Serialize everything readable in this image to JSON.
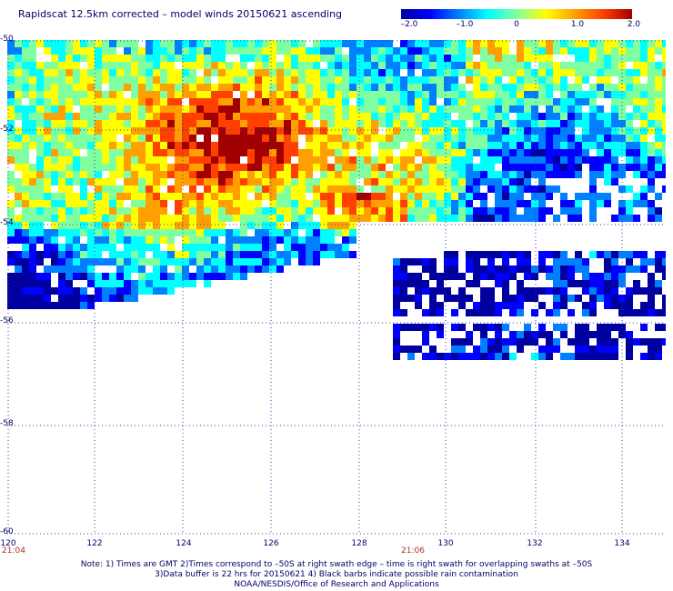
{
  "title": "Rapidscat 12.5km corrected – model winds 20150621 ascending",
  "colorbar": {
    "ticks": [
      "–2.0",
      "–1.0",
      "0",
      "1.0",
      "2.0"
    ],
    "colors": [
      "#0000a0",
      "#0000ff",
      "#0080ff",
      "#00ffff",
      "#80ffa0",
      "#ffff00",
      "#ffa000",
      "#ff4000",
      "#a00000"
    ]
  },
  "axes": {
    "lat_labels": [
      "-50",
      "-52",
      "-54",
      "-56",
      "-58",
      "-60"
    ],
    "lon_labels": [
      "120",
      "122",
      "124",
      "126",
      "128",
      "130",
      "132",
      "134"
    ],
    "lon_range": [
      120,
      135
    ],
    "lat_range": [
      -60,
      -50
    ],
    "grid": true
  },
  "times": [
    "21:04",
    "21:06"
  ],
  "notes": [
    "Note: 1) Times are GMT 2)Times correspond to –50S at right swath edge – time is right swath for overlapping swaths at –50S",
    "3)Data buffer is 22 hrs for 20150621 4) Black barbs indicate possible rain contamination",
    "NOAA/NESDIS/Office of Research and Applications"
  ]
}
